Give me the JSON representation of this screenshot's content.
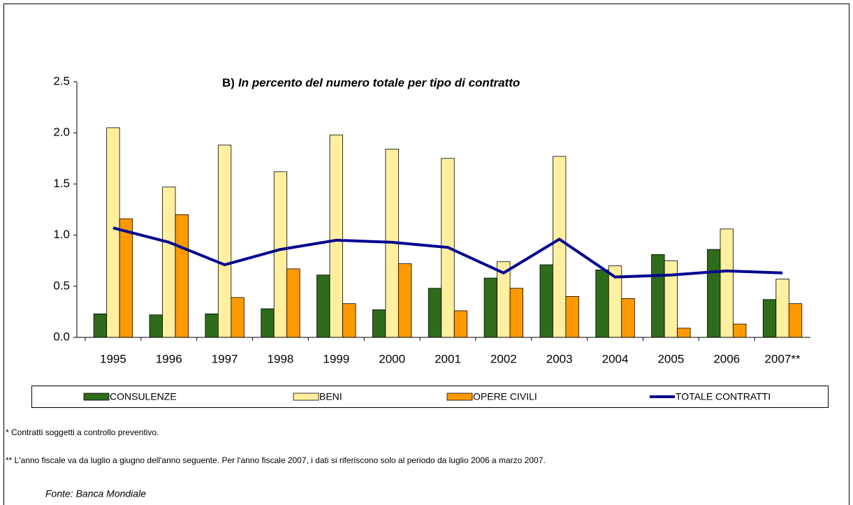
{
  "chart_data": {
    "type": "bar",
    "title_label": "B)",
    "title": "In percento del numero totale per tipo di contratto",
    "categories": [
      "1995",
      "1996",
      "1997",
      "1998",
      "1999",
      "2000",
      "2001",
      "2002",
      "2003",
      "2004",
      "2005",
      "2006",
      "2007**"
    ],
    "series": [
      {
        "name": "CONSULENZE",
        "color": "#2e6b1a",
        "type": "bar",
        "values": [
          0.23,
          0.22,
          0.23,
          0.28,
          0.61,
          0.27,
          0.48,
          0.58,
          0.71,
          0.66,
          0.81,
          0.86,
          0.37
        ]
      },
      {
        "name": "BENI",
        "color": "#ffef9f",
        "type": "bar",
        "values": [
          2.05,
          1.47,
          1.88,
          1.62,
          1.98,
          1.84,
          1.75,
          0.74,
          1.77,
          0.7,
          0.75,
          1.06,
          0.57
        ]
      },
      {
        "name": "OPERE CIVILI",
        "color": "#ff9900",
        "type": "bar",
        "values": [
          1.16,
          1.2,
          0.39,
          0.67,
          0.33,
          0.72,
          0.26,
          0.48,
          0.4,
          0.38,
          0.09,
          0.13,
          0.33
        ]
      },
      {
        "name": "TOTALE CONTRATTI",
        "color": "#000090",
        "type": "line",
        "values": [
          1.07,
          0.93,
          0.71,
          0.86,
          0.95,
          0.93,
          0.88,
          0.63,
          0.96,
          0.59,
          0.61,
          0.65,
          0.63
        ]
      }
    ],
    "ylim": [
      0,
      2.5
    ],
    "yticks": [
      {
        "value": 0,
        "label": "0.0"
      },
      0.5,
      {
        "value": 1,
        "label": "1.0"
      },
      1.5,
      {
        "value": 2,
        "label": "2.0"
      },
      2.5
    ],
    "legend": "bottom",
    "notes": [
      "* Contratti soggetti a controllo preventivo.",
      "** L'anno fiscale va da luglio a giugno dell'anno seguente. Per l'anno fiscale 2007, i dati si riferiscono solo al periodo da luglio 2006 a marzo 2007."
    ],
    "source": "Fonte: Banca Mondiale"
  }
}
